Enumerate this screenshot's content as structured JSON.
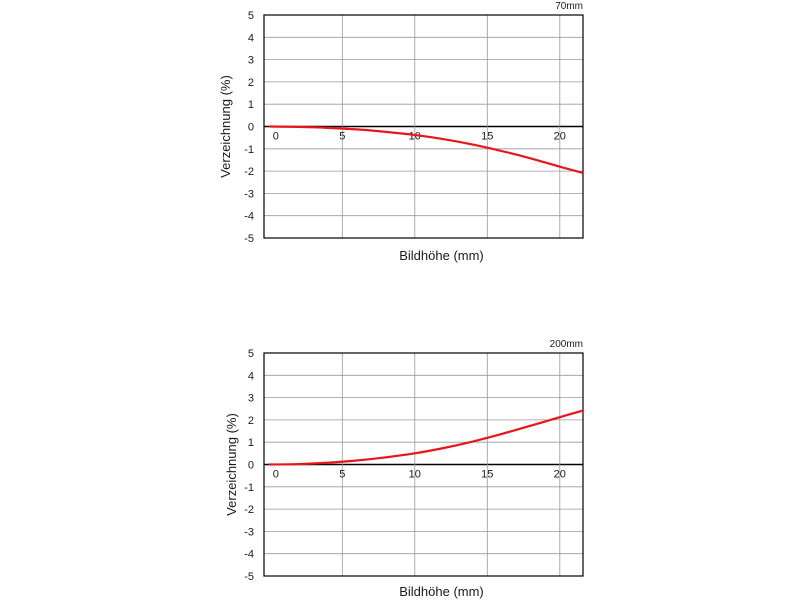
{
  "chart_data": [
    {
      "type": "line",
      "corner_label": "70mm",
      "xlabel": "Bildhöhe (mm)",
      "ylabel": "Verzeichnung (%)",
      "xlim": [
        -0.4,
        21.6
      ],
      "ylim": [
        -5,
        5
      ],
      "x_ticks": [
        0,
        5,
        10,
        15,
        20
      ],
      "y_ticks": [
        5,
        4,
        3,
        2,
        1,
        0,
        -1,
        -2,
        -3,
        -4,
        -5
      ],
      "x_gridlines": [
        0,
        5,
        10,
        15,
        20
      ],
      "grid": true,
      "line_color": "#e8151b",
      "series": [
        {
          "x": [
            0,
            2,
            4,
            6,
            8,
            10,
            12,
            14,
            16,
            18,
            20,
            21.6
          ],
          "y": [
            0,
            -0.02,
            -0.06,
            -0.13,
            -0.24,
            -0.38,
            -0.57,
            -0.81,
            -1.1,
            -1.43,
            -1.8,
            -2.08
          ]
        }
      ]
    },
    {
      "type": "line",
      "corner_label": "200mm",
      "xlabel": "Bildhöhe (mm)",
      "ylabel": "Verzeichnung (%)",
      "xlim": [
        -0.4,
        21.6
      ],
      "ylim": [
        -5,
        5
      ],
      "x_ticks": [
        0,
        5,
        10,
        15,
        20
      ],
      "y_ticks": [
        5,
        4,
        3,
        2,
        1,
        0,
        -1,
        -2,
        -3,
        -4,
        -5
      ],
      "x_gridlines": [
        0,
        5,
        10,
        15,
        20
      ],
      "grid": true,
      "line_color": "#e8151b",
      "series": [
        {
          "x": [
            0,
            2,
            4,
            6,
            8,
            10,
            12,
            14,
            16,
            18,
            20,
            21.6
          ],
          "y": [
            0,
            0.02,
            0.08,
            0.18,
            0.32,
            0.5,
            0.74,
            1.03,
            1.37,
            1.74,
            2.12,
            2.42
          ]
        }
      ]
    }
  ]
}
